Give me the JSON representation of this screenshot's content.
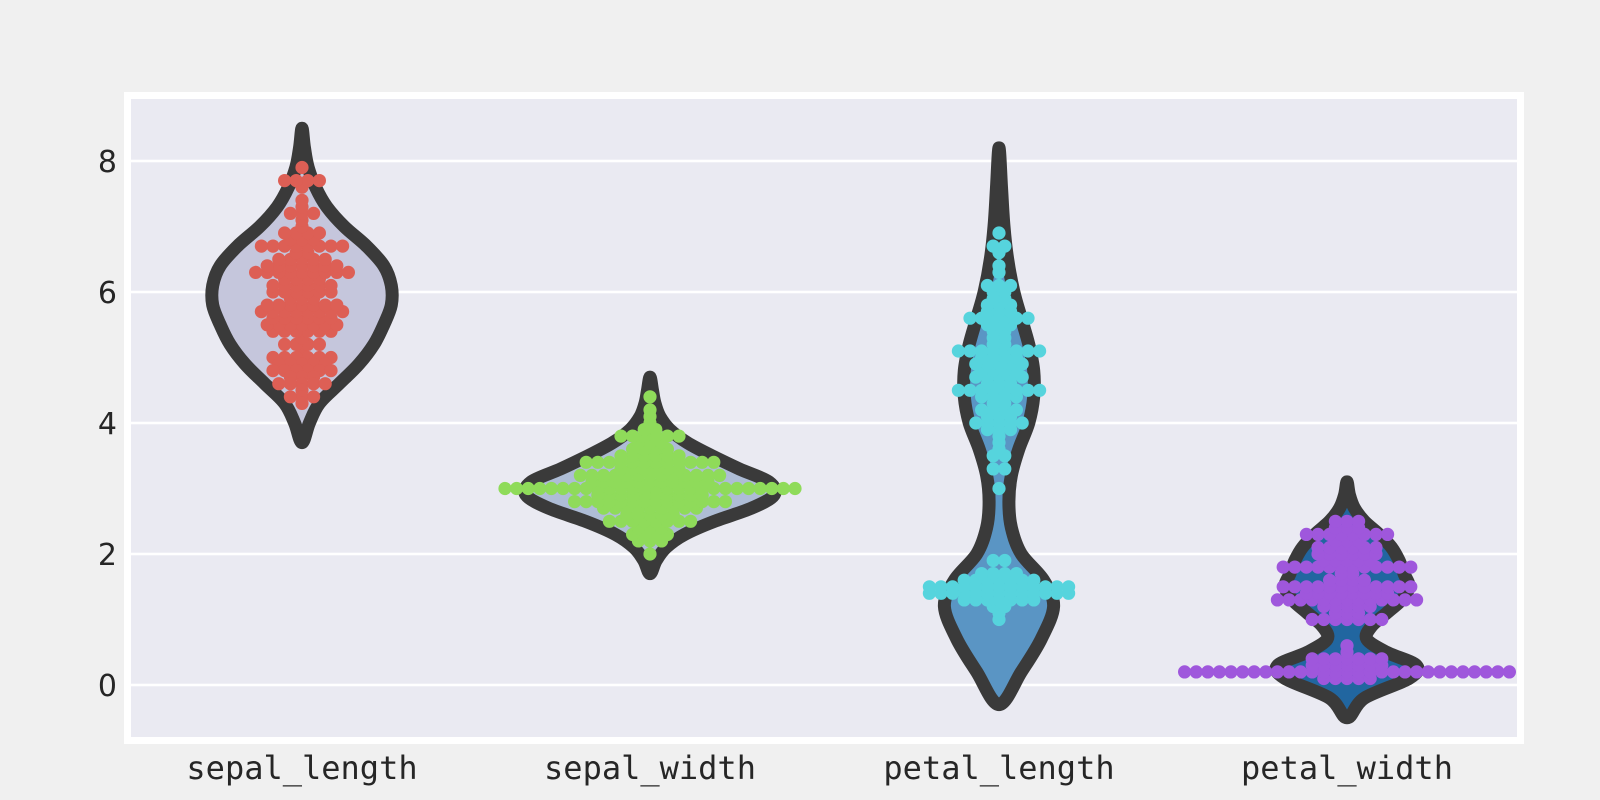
{
  "chart_data": {
    "type": "violin",
    "overlay": "swarm",
    "categories": [
      "sepal_length",
      "sepal_width",
      "petal_length",
      "petal_width"
    ],
    "ylim": [
      -0.8,
      8.9
    ],
    "yticks": [
      0,
      2,
      4,
      6,
      8
    ],
    "ytick_labels": [
      "0",
      "2",
      "4",
      "6",
      "8"
    ],
    "grid": true,
    "colors": {
      "page_background": "#f0f0f0",
      "plot_background": "#eaeaf2",
      "plot_border": "#ffffff",
      "gridline": "#ffffff",
      "violin_outline": "#3a3a3a",
      "swarm": [
        "#dd5f55",
        "#8fdb5a",
        "#56d4dd",
        "#9f57dc"
      ],
      "violin_fill": [
        "#c5c6dc",
        "#aebdd6",
        "#5a95c4",
        "#2166a0"
      ]
    },
    "series": [
      {
        "category": "sepal_length",
        "swarm_values": [
          [
            5.1,
            1
          ],
          [
            5.0,
            6
          ],
          [
            4.9,
            5
          ],
          [
            4.8,
            6
          ],
          [
            4.7,
            3
          ],
          [
            4.6,
            5
          ],
          [
            4.5,
            1
          ],
          [
            4.4,
            3
          ],
          [
            4.3,
            1
          ],
          [
            5.2,
            4
          ],
          [
            5.3,
            1
          ],
          [
            5.4,
            6
          ],
          [
            5.5,
            7
          ],
          [
            5.6,
            6
          ],
          [
            5.7,
            8
          ],
          [
            5.8,
            7
          ],
          [
            5.9,
            3
          ],
          [
            6.0,
            6
          ],
          [
            6.1,
            6
          ],
          [
            6.2,
            4
          ],
          [
            6.3,
            9
          ],
          [
            6.4,
            7
          ],
          [
            6.5,
            5
          ],
          [
            6.6,
            2
          ],
          [
            6.7,
            8
          ],
          [
            6.8,
            3
          ],
          [
            6.9,
            4
          ],
          [
            7.0,
            1
          ],
          [
            7.1,
            1
          ],
          [
            7.2,
            3
          ],
          [
            7.3,
            1
          ],
          [
            7.4,
            1
          ],
          [
            7.6,
            1
          ],
          [
            7.7,
            4
          ],
          [
            7.9,
            1
          ]
        ],
        "violin_density": [
          [
            3.7,
            0.0
          ],
          [
            4.0,
            0.06
          ],
          [
            4.3,
            0.14
          ],
          [
            4.6,
            0.3
          ],
          [
            4.9,
            0.46
          ],
          [
            5.2,
            0.58
          ],
          [
            5.5,
            0.66
          ],
          [
            5.8,
            0.72
          ],
          [
            6.1,
            0.72
          ],
          [
            6.4,
            0.66
          ],
          [
            6.7,
            0.52
          ],
          [
            7.0,
            0.34
          ],
          [
            7.3,
            0.2
          ],
          [
            7.6,
            0.11
          ],
          [
            7.9,
            0.05
          ],
          [
            8.2,
            0.02
          ],
          [
            8.5,
            0.0
          ]
        ]
      },
      {
        "category": "sepal_width",
        "swarm_values": [
          [
            2.0,
            1
          ],
          [
            2.2,
            3
          ],
          [
            2.3,
            4
          ],
          [
            2.4,
            3
          ],
          [
            2.5,
            8
          ],
          [
            2.6,
            5
          ],
          [
            2.7,
            9
          ],
          [
            2.8,
            14
          ],
          [
            2.9,
            10
          ],
          [
            3.0,
            26
          ],
          [
            3.1,
            11
          ],
          [
            3.2,
            13
          ],
          [
            3.3,
            6
          ],
          [
            3.4,
            12
          ],
          [
            3.5,
            6
          ],
          [
            3.6,
            4
          ],
          [
            3.7,
            3
          ],
          [
            3.8,
            6
          ],
          [
            3.9,
            2
          ],
          [
            4.0,
            1
          ],
          [
            4.1,
            1
          ],
          [
            4.2,
            1
          ],
          [
            4.4,
            1
          ]
        ],
        "violin_density": [
          [
            1.7,
            0.0
          ],
          [
            1.9,
            0.05
          ],
          [
            2.1,
            0.13
          ],
          [
            2.3,
            0.28
          ],
          [
            2.5,
            0.52
          ],
          [
            2.7,
            0.82
          ],
          [
            2.9,
            1.0
          ],
          [
            3.1,
            0.96
          ],
          [
            3.3,
            0.72
          ],
          [
            3.5,
            0.5
          ],
          [
            3.7,
            0.3
          ],
          [
            3.9,
            0.16
          ],
          [
            4.1,
            0.08
          ],
          [
            4.3,
            0.04
          ],
          [
            4.5,
            0.02
          ],
          [
            4.7,
            0.0
          ]
        ]
      },
      {
        "category": "petal_length",
        "swarm_values": [
          [
            1.0,
            1
          ],
          [
            1.1,
            1
          ],
          [
            1.2,
            2
          ],
          [
            1.3,
            7
          ],
          [
            1.4,
            13
          ],
          [
            1.5,
            13
          ],
          [
            1.6,
            7
          ],
          [
            1.7,
            4
          ],
          [
            1.9,
            2
          ],
          [
            3.0,
            1
          ],
          [
            3.3,
            2
          ],
          [
            3.5,
            2
          ],
          [
            3.6,
            1
          ],
          [
            3.7,
            1
          ],
          [
            3.8,
            1
          ],
          [
            3.9,
            3
          ],
          [
            4.0,
            5
          ],
          [
            4.1,
            3
          ],
          [
            4.2,
            4
          ],
          [
            4.3,
            2
          ],
          [
            4.4,
            4
          ],
          [
            4.5,
            8
          ],
          [
            4.6,
            3
          ],
          [
            4.7,
            5
          ],
          [
            4.8,
            4
          ],
          [
            4.9,
            5
          ],
          [
            5.0,
            4
          ],
          [
            5.1,
            8
          ],
          [
            5.2,
            2
          ],
          [
            5.3,
            2
          ],
          [
            5.4,
            2
          ],
          [
            5.5,
            3
          ],
          [
            5.6,
            6
          ],
          [
            5.7,
            3
          ],
          [
            5.8,
            3
          ],
          [
            5.9,
            2
          ],
          [
            6.0,
            2
          ],
          [
            6.1,
            3
          ],
          [
            6.3,
            1
          ],
          [
            6.4,
            1
          ],
          [
            6.6,
            1
          ],
          [
            6.7,
            2
          ],
          [
            6.9,
            1
          ]
        ],
        "violin_density": [
          [
            -0.3,
            0.0
          ],
          [
            0.2,
            0.18
          ],
          [
            0.7,
            0.34
          ],
          [
            1.2,
            0.44
          ],
          [
            1.6,
            0.36
          ],
          [
            2.0,
            0.18
          ],
          [
            2.4,
            0.1
          ],
          [
            2.8,
            0.08
          ],
          [
            3.2,
            0.1
          ],
          [
            3.6,
            0.16
          ],
          [
            4.0,
            0.24
          ],
          [
            4.4,
            0.28
          ],
          [
            4.8,
            0.28
          ],
          [
            5.2,
            0.24
          ],
          [
            5.6,
            0.18
          ],
          [
            6.0,
            0.12
          ],
          [
            6.5,
            0.07
          ],
          [
            7.0,
            0.04
          ],
          [
            7.6,
            0.02
          ],
          [
            8.2,
            0.0
          ]
        ]
      },
      {
        "category": "petal_width",
        "swarm_values": [
          [
            0.1,
            5
          ],
          [
            0.2,
            29
          ],
          [
            0.3,
            7
          ],
          [
            0.4,
            7
          ],
          [
            0.5,
            1
          ],
          [
            0.6,
            1
          ],
          [
            1.0,
            7
          ],
          [
            1.1,
            3
          ],
          [
            1.2,
            5
          ],
          [
            1.3,
            13
          ],
          [
            1.4,
            8
          ],
          [
            1.5,
            12
          ],
          [
            1.6,
            4
          ],
          [
            1.7,
            2
          ],
          [
            1.8,
            12
          ],
          [
            1.9,
            5
          ],
          [
            2.0,
            6
          ],
          [
            2.1,
            6
          ],
          [
            2.2,
            3
          ],
          [
            2.3,
            8
          ],
          [
            2.4,
            3
          ],
          [
            2.5,
            3
          ]
        ],
        "violin_density": [
          [
            -0.5,
            0.0
          ],
          [
            -0.2,
            0.14
          ],
          [
            0.1,
            0.5
          ],
          [
            0.3,
            0.56
          ],
          [
            0.5,
            0.32
          ],
          [
            0.7,
            0.16
          ],
          [
            0.9,
            0.2
          ],
          [
            1.1,
            0.32
          ],
          [
            1.3,
            0.44
          ],
          [
            1.5,
            0.5
          ],
          [
            1.7,
            0.46
          ],
          [
            1.9,
            0.42
          ],
          [
            2.1,
            0.36
          ],
          [
            2.3,
            0.26
          ],
          [
            2.5,
            0.14
          ],
          [
            2.7,
            0.06
          ],
          [
            2.9,
            0.02
          ],
          [
            3.1,
            0.0
          ]
        ]
      }
    ]
  }
}
